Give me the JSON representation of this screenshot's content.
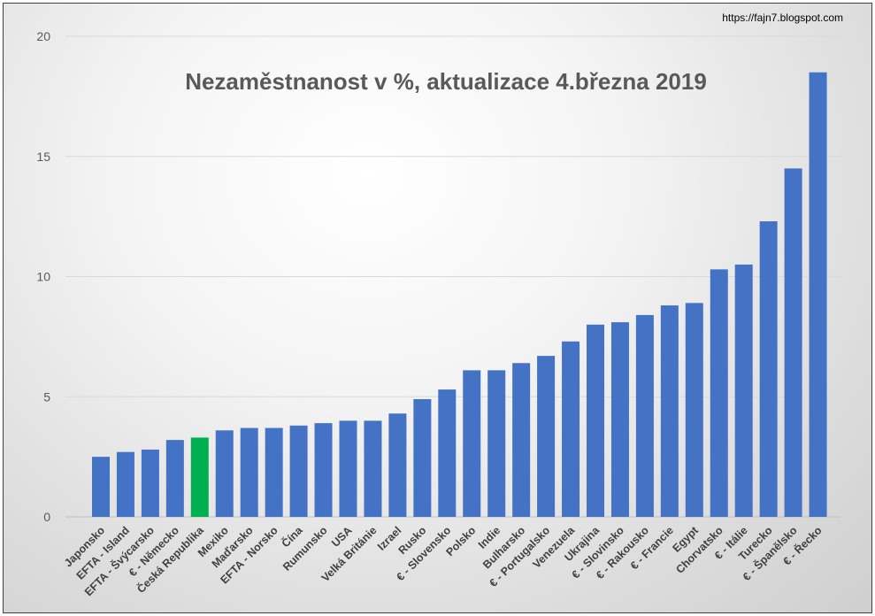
{
  "source_url": "https://fajn7.blogspot.com",
  "chart_data": {
    "type": "bar",
    "title": "Nezaměstnanost v %, aktualizace 4.března 2019",
    "xlabel": "",
    "ylabel": "",
    "ylim": [
      0,
      20
    ],
    "yticks": [
      0,
      5,
      10,
      15,
      20
    ],
    "grid": true,
    "categories": [
      "Japonsko",
      "EFTA - Island",
      "EFTA - Švýcarsko",
      "€ - Německo",
      "Česká Republika",
      "Mexiko",
      "Maďarsko",
      "EFTA - Norsko",
      "Čína",
      "Rumunsko",
      "USA",
      "Velká Británie",
      "Izrael",
      "Rusko",
      "€ - Slovensko",
      "Polsko",
      "Indie",
      "Bulharsko",
      "€ - Portugalsko",
      "Venezuela",
      "Ukrajina",
      "€ - Slovinsko",
      "€ - Rakousko",
      "€ - Francie",
      "Egypt",
      "Chorvatsko",
      "€ - Itálie",
      "Turecko",
      "€ - Španělsko",
      "€ - Řecko"
    ],
    "values": [
      2.5,
      2.7,
      2.8,
      3.2,
      3.3,
      3.6,
      3.7,
      3.7,
      3.8,
      3.9,
      4.0,
      4.0,
      4.3,
      4.9,
      5.3,
      6.1,
      6.1,
      6.4,
      6.7,
      7.3,
      8.0,
      8.1,
      8.4,
      8.8,
      8.9,
      10.3,
      10.5,
      12.3,
      14.5,
      18.5
    ],
    "colors": {
      "default": "#4472c4",
      "highlight": "#00b050"
    },
    "highlight_category": "Česká Republika"
  }
}
